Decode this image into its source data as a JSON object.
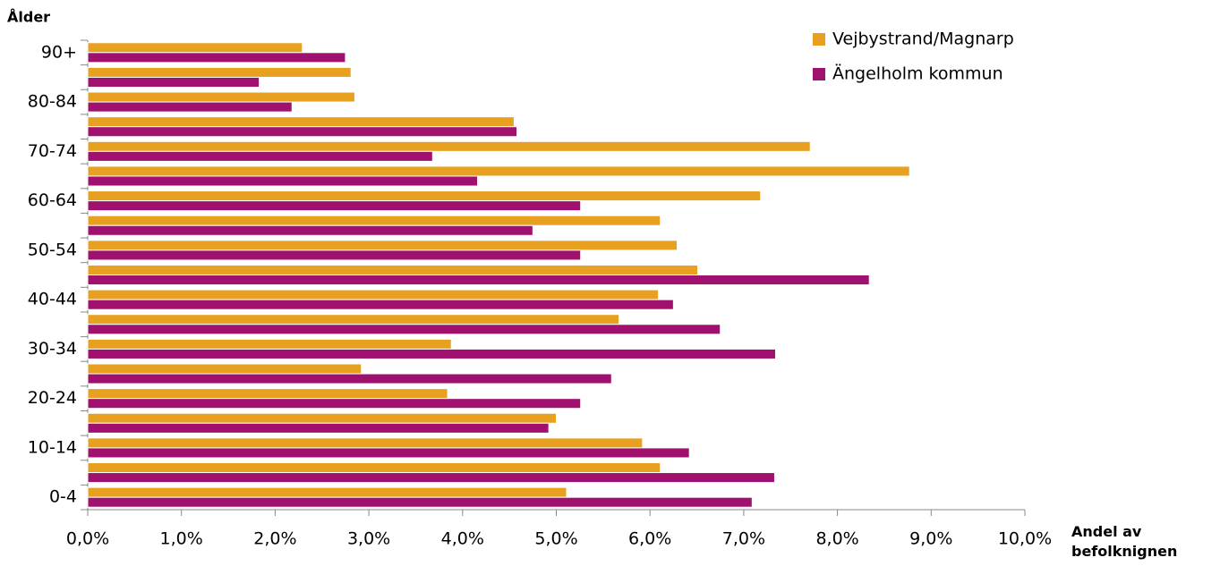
{
  "chart_data": {
    "type": "bar",
    "orientation": "horizontal",
    "ylabel": "Ålder",
    "xlabel": "Andel av befolknignen",
    "categories": [
      "0-4",
      null,
      "10-14",
      null,
      "20-24",
      null,
      "30-34",
      null,
      "40-44",
      null,
      "50-54",
      null,
      "60-64",
      null,
      "70-74",
      null,
      "80-84",
      null,
      "90+"
    ],
    "series": [
      {
        "name": "Vejbystrand/Magnarp",
        "color": "#e8a020",
        "values": [
          5.11,
          6.11,
          5.92,
          5.0,
          3.84,
          2.92,
          3.88,
          5.67,
          6.09,
          6.51,
          6.29,
          6.11,
          7.18,
          8.77,
          7.71,
          4.55,
          2.85,
          2.81,
          2.29
        ]
      },
      {
        "name": "Ängelholm kommun",
        "color": "#a0106e",
        "values": [
          7.09,
          7.33,
          6.42,
          4.92,
          5.26,
          5.59,
          7.34,
          6.75,
          6.25,
          8.34,
          5.26,
          4.75,
          5.26,
          4.16,
          3.68,
          4.58,
          2.18,
          1.83,
          2.75
        ]
      }
    ],
    "xlim": [
      0,
      10
    ],
    "xticks": [
      {
        "value": 0,
        "label": "0,0%"
      },
      {
        "value": 1,
        "label": "1,0%"
      },
      {
        "value": 2,
        "label": "2,0%"
      },
      {
        "value": 3,
        "label": "3,0%"
      },
      {
        "value": 4,
        "label": "4,0%"
      },
      {
        "value": 5,
        "label": "5,0%"
      },
      {
        "value": 6,
        "label": "6,0%"
      },
      {
        "value": 7,
        "label": "7,0%"
      },
      {
        "value": 8,
        "label": "8,0%"
      },
      {
        "value": 9,
        "label": "9,0%"
      },
      {
        "value": 10,
        "label": "10,0%"
      }
    ],
    "grid": false,
    "legend": "upper right"
  }
}
